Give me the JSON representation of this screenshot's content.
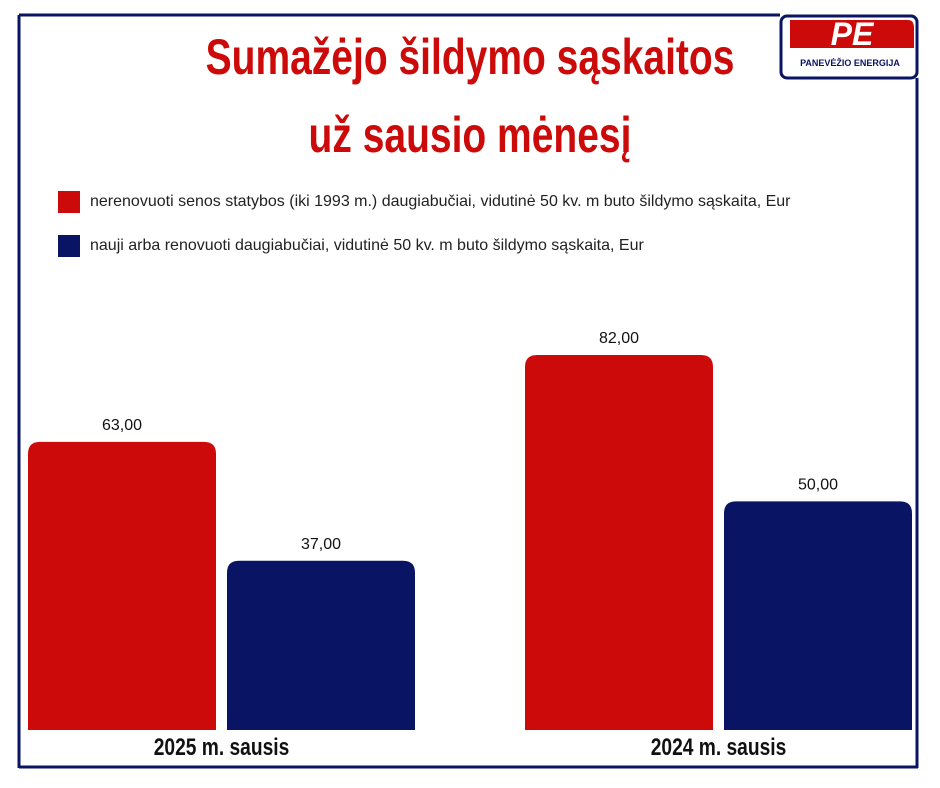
{
  "logo": {
    "mark": "PE",
    "name": "PANEVĖŽIO ENERGIJA"
  },
  "chart_data": {
    "type": "bar",
    "title": [
      "Sumažėjo šildymo sąskaitos",
      "už sausio mėnesį"
    ],
    "categories": [
      "2025 m. sausis",
      "2024 m. sausis"
    ],
    "series": [
      {
        "name": "nerenovuoti senos statybos (iki 1993 m.) daugiabučiai, vidutinė 50 kv. m buto šildymo sąskaita, Eur",
        "color": "#cc0a0a",
        "values": [
          63,
          82
        ],
        "value_labels": [
          "63,00",
          "82,00"
        ]
      },
      {
        "name": "nauji arba renovuoti daugiabučiai, vidutinė 50 kv. m buto šildymo sąskaita, Eur",
        "color": "#0a1464",
        "values": [
          37,
          50
        ],
        "value_labels": [
          "37,00",
          "50,00"
        ]
      }
    ]
  }
}
